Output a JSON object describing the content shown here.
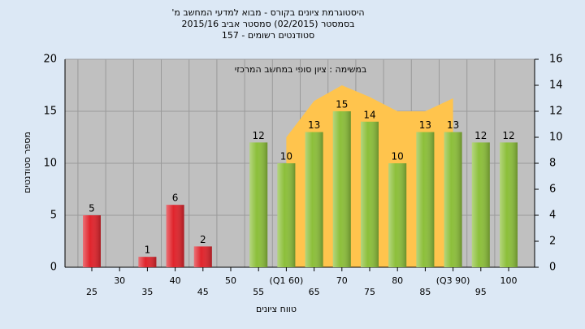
{
  "chart_data": {
    "type": "bar",
    "title": "היסטוגרמת ציונים בקורס - מבוא למדעי המחשב מ'",
    "subtitle": "בסמסטר (02/2015) סמסטר אביב 2015/16",
    "subtitle2": "סטודנטים רשומים - 157",
    "annotation": "במשימה : ציון סופי במחשב המרכזי",
    "y_label": "מספר סטודנטים",
    "x_label": "טווח ציונים",
    "categories": [
      "25",
      "30",
      "35",
      "40",
      "45",
      "50",
      "55",
      "(Q1 60)",
      "65",
      "70",
      "75",
      "80",
      "85",
      "(Q3 90)",
      "95",
      "100"
    ],
    "values": [
      5,
      null,
      1,
      6,
      2,
      null,
      12,
      10,
      13,
      15,
      14,
      10,
      13,
      13,
      12,
      12
    ],
    "colors": [
      "#e0242c",
      "#e0242c",
      "#e0242c",
      "#e0242c",
      "#e0242c",
      "#e0242c",
      "#8cbf3a",
      "#8cbf3a",
      "#8cbf3a",
      "#8cbf3a",
      "#8cbf3a",
      "#8cbf3a",
      "#8cbf3a",
      "#8cbf3a",
      "#8cbf3a",
      "#8cbf3a"
    ],
    "area": {
      "color": "#ffc44d",
      "axis": "y2",
      "values": [
        null,
        null,
        null,
        null,
        null,
        null,
        null,
        10,
        12.8,
        14,
        13.1,
        12,
        12,
        13,
        null,
        null
      ]
    },
    "ylim": [
      0,
      20
    ],
    "yticks": [
      0,
      5,
      10,
      15,
      20
    ],
    "y2lim": [
      0,
      16
    ],
    "y2ticks": [
      0,
      2,
      4,
      6,
      8,
      10,
      12,
      14,
      16
    ],
    "grid": true
  }
}
